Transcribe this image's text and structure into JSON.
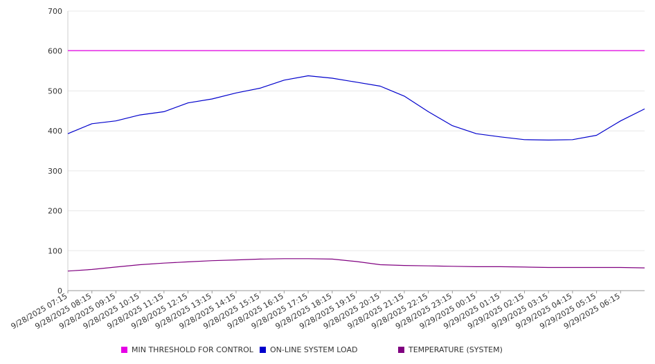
{
  "chart_data": {
    "type": "line",
    "title": "",
    "xlabel": "",
    "ylabel": "",
    "ylim": [
      0,
      700
    ],
    "yticks": [
      "0",
      "100",
      "200",
      "300",
      "400",
      "500",
      "600",
      "700"
    ],
    "grid": true,
    "legend_position": "bottom",
    "x_tick_labels": [
      "9/28/2025 07:15",
      "9/28/2025 08:15",
      "9/28/2025 09:15",
      "9/28/2025 10:15",
      "9/28/2025 11:15",
      "9/28/2025 12:15",
      "9/28/2025 13:15",
      "9/28/2025 14:15",
      "9/28/2025 15:15",
      "9/28/2025 16:15",
      "9/28/2025 17:15",
      "9/28/2025 18:15",
      "9/28/2025 19:15",
      "9/28/2025 20:15",
      "9/28/2025 21:15",
      "9/28/2025 22:15",
      "9/28/2025 23:15",
      "9/29/2025 00:15",
      "9/29/2025 01:15",
      "9/29/2025 02:15",
      "9/29/2025 03:15",
      "9/29/2025 04:15",
      "9/29/2025 05:15",
      "9/29/2025 06:15"
    ],
    "x": [
      "9/28/2025 07:15",
      "9/28/2025 08:15",
      "9/28/2025 09:15",
      "9/28/2025 10:15",
      "9/28/2025 11:15",
      "9/28/2025 12:15",
      "9/28/2025 13:15",
      "9/28/2025 14:15",
      "9/28/2025 15:15",
      "9/28/2025 16:15",
      "9/28/2025 17:15",
      "9/28/2025 18:15",
      "9/28/2025 19:15",
      "9/28/2025 20:15",
      "9/28/2025 21:15",
      "9/28/2025 22:15",
      "9/28/2025 23:15",
      "9/29/2025 00:15",
      "9/29/2025 01:15",
      "9/29/2025 02:15",
      "9/29/2025 03:15",
      "9/29/2025 04:15",
      "9/29/2025 05:15",
      "9/29/2025 06:15",
      "9/29/2025 07:15"
    ],
    "series": [
      {
        "name": "MIN THRESHOLD FOR CONTROL",
        "color": "#e600e6",
        "values": [
          601,
          601,
          601,
          601,
          601,
          601,
          601,
          601,
          601,
          601,
          601,
          601,
          601,
          601,
          601,
          601,
          601,
          601,
          601,
          601,
          601,
          601,
          601,
          601,
          601
        ]
      },
      {
        "name": "ON-LINE SYSTEM LOAD",
        "color": "#0000cc",
        "values": [
          393,
          418,
          425,
          440,
          448,
          470,
          480,
          495,
          507,
          527,
          538,
          532,
          522,
          512,
          487,
          448,
          413,
          393,
          385,
          378,
          377,
          378,
          389,
          425,
          455
        ]
      },
      {
        "name": "TEMPERATURE (SYSTEM)",
        "color": "#800080",
        "values": [
          49,
          53,
          59,
          65,
          69,
          72,
          75,
          77,
          79,
          80,
          80,
          79,
          73,
          65,
          63,
          62,
          61,
          60,
          60,
          59,
          58,
          58,
          58,
          58,
          57
        ]
      }
    ]
  }
}
